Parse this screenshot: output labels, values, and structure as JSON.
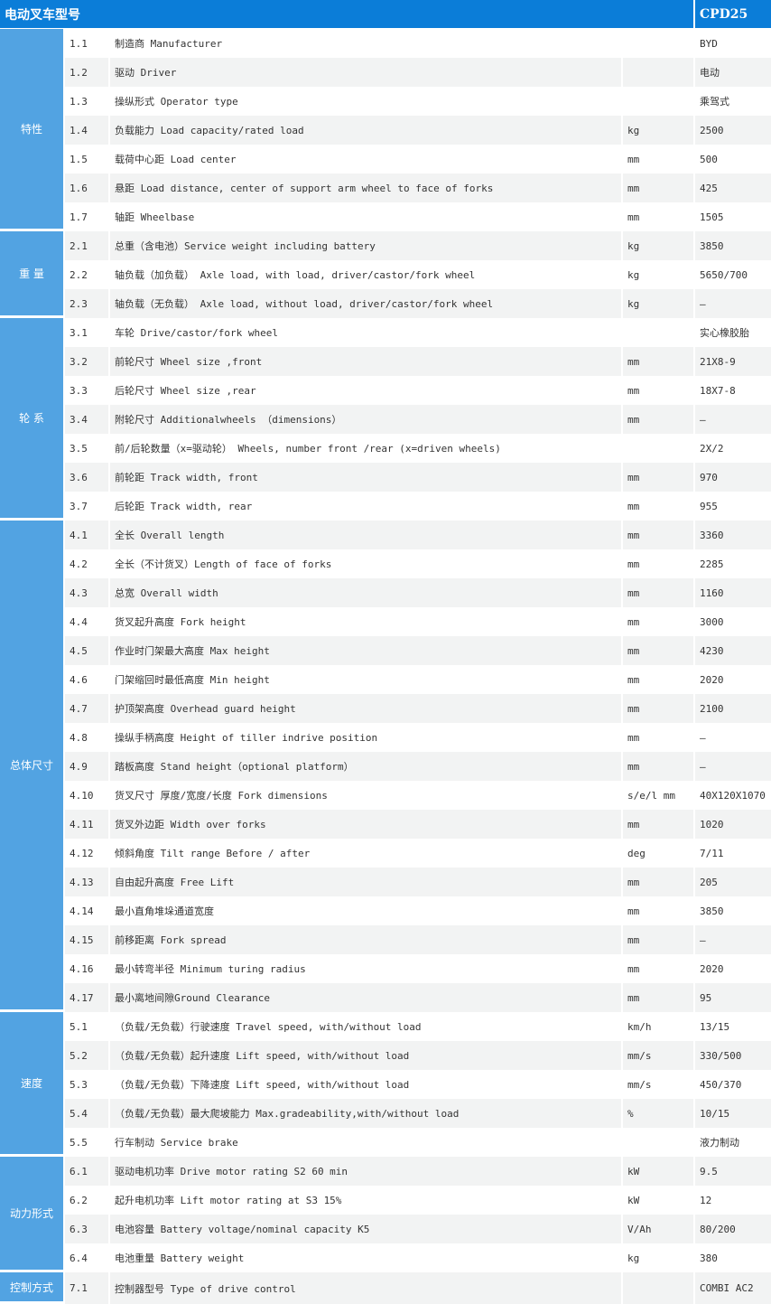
{
  "header": {
    "title": "电动叉车型号",
    "model": "CPD25"
  },
  "groups": [
    {
      "name": "特性",
      "rows": [
        [
          "1.1",
          "制造商 Manufacturer",
          "",
          "BYD"
        ],
        [
          "1.2",
          "驱动 Driver",
          "",
          "电动"
        ],
        [
          "1.3",
          "操纵形式 Operator type",
          "",
          "乘驾式"
        ],
        [
          "1.4",
          "负载能力 Load capacity/rated load",
          "kg",
          "2500"
        ],
        [
          "1.5",
          "载荷中心距 Load center",
          "mm",
          "500"
        ],
        [
          "1.6",
          "悬距 Load distance, center of support arm wheel to face of forks",
          "mm",
          "425"
        ],
        [
          "1.7",
          "轴距 Wheelbase",
          "mm",
          "1505"
        ]
      ]
    },
    {
      "name": "重 量",
      "rows": [
        [
          "2.1",
          "总重（含电池）Service weight including battery",
          "kg",
          "3850"
        ],
        [
          "2.2",
          "轴负载（加负载） Axle load, with load, driver/castor/fork wheel",
          "kg",
          "5650/700"
        ],
        [
          "2.3",
          "轴负载（无负载） Axle load, without load, driver/castor/fork wheel",
          "kg",
          "—"
        ]
      ]
    },
    {
      "name": "轮 系",
      "rows": [
        [
          "3.1",
          "车轮 Drive/castor/fork wheel",
          "",
          "实心橡胶胎"
        ],
        [
          "3.2",
          "前轮尺寸 Wheel size ,front",
          "mm",
          "21X8-9"
        ],
        [
          "3.3",
          "后轮尺寸 Wheel size ,rear",
          "mm",
          "18X7-8"
        ],
        [
          "3.4",
          "附轮尺寸 Additionalwheels （dimensions）",
          "mm",
          "—"
        ],
        [
          "3.5",
          "前/后轮数量（x=驱动轮） Wheels, number front /rear (x=driven wheels)",
          "",
          "2X/2"
        ],
        [
          "3.6",
          "前轮距 Track width, front",
          "mm",
          "970"
        ],
        [
          "3.7",
          "后轮距 Track width, rear",
          "mm",
          "955"
        ]
      ]
    },
    {
      "name": "总体尺寸",
      "rows": [
        [
          "4.1",
          "全长 Overall length",
          "mm",
          "3360"
        ],
        [
          "4.2",
          "全长（不计货叉）Length of face of forks",
          "mm",
          "2285"
        ],
        [
          "4.3",
          "总宽 Overall width",
          "mm",
          "1160"
        ],
        [
          "4.4",
          "货叉起升高度 Fork height",
          "mm",
          "3000"
        ],
        [
          "4.5",
          "作业时门架最大高度 Max height",
          "mm",
          "4230"
        ],
        [
          "4.6",
          "门架缩回时最低高度 Min height",
          "mm",
          "2020"
        ],
        [
          "4.7",
          "护顶架高度 Overhead guard height",
          "mm",
          "2100"
        ],
        [
          "4.8",
          "操纵手柄高度 Height of tiller indrive position",
          "mm",
          "—"
        ],
        [
          "4.9",
          "踏板高度 Stand height（optional platform）",
          "mm",
          "—"
        ],
        [
          "4.10",
          "货叉尺寸 厚度/宽度/长度 Fork dimensions",
          "s/e/l mm",
          "40X120X1070"
        ],
        [
          "4.11",
          "货叉外边距 Width over forks",
          "mm",
          "1020"
        ],
        [
          "4.12",
          "倾斜角度 Tilt range Before / after",
          "deg",
          "7/11"
        ],
        [
          "4.13",
          "自由起升高度 Free Lift",
          "mm",
          "205"
        ],
        [
          "4.14",
          "最小直角堆垛通道宽度",
          "mm",
          "3850"
        ],
        [
          "4.15",
          "前移距离 Fork spread",
          "mm",
          "—"
        ],
        [
          "4.16",
          "最小转弯半径 Minimum turing radius",
          "mm",
          "2020"
        ],
        [
          "4.17",
          "最小离地间隙Ground Clearance",
          "mm",
          "95"
        ]
      ]
    },
    {
      "name": "速度",
      "rows": [
        [
          "5.1",
          "（负载/无负载）行驶速度 Travel speed, with/without load",
          "km/h",
          "13/15"
        ],
        [
          "5.2",
          "（负载/无负载）起升速度 Lift speed, with/without load",
          "mm/s",
          "330/500"
        ],
        [
          "5.3",
          "（负载/无负载）下降速度 Lift speed, with/without load",
          "mm/s",
          "450/370"
        ],
        [
          "5.4",
          "（负载/无负载）最大爬坡能力 Max.gradeability,with/without load",
          "%",
          "10/15"
        ],
        [
          "5.5",
          "行车制动 Service brake",
          "",
          "液力制动"
        ]
      ]
    },
    {
      "name": "动力形式",
      "rows": [
        [
          "6.1",
          "驱动电机功率 Drive motor rating S2 60 min",
          "kW",
          "9.5"
        ],
        [
          "6.2",
          "起升电机功率 Lift motor rating at S3 15%",
          "kW",
          "12"
        ],
        [
          "6.3",
          "电池容量 Battery voltage/nominal capacity K5",
          "V/Ah",
          "80/200"
        ],
        [
          "6.4",
          "电池重量 Battery weight",
          "kg",
          "380"
        ]
      ]
    },
    {
      "name": "控制方式",
      "rows": [
        [
          "7.1",
          "控制器型号 Type of drive control",
          "",
          "COMBI AC2"
        ]
      ]
    }
  ],
  "colors": {
    "header": "#0b7dd8",
    "category": "#52a3e2",
    "alt_row": "#f2f3f3"
  }
}
